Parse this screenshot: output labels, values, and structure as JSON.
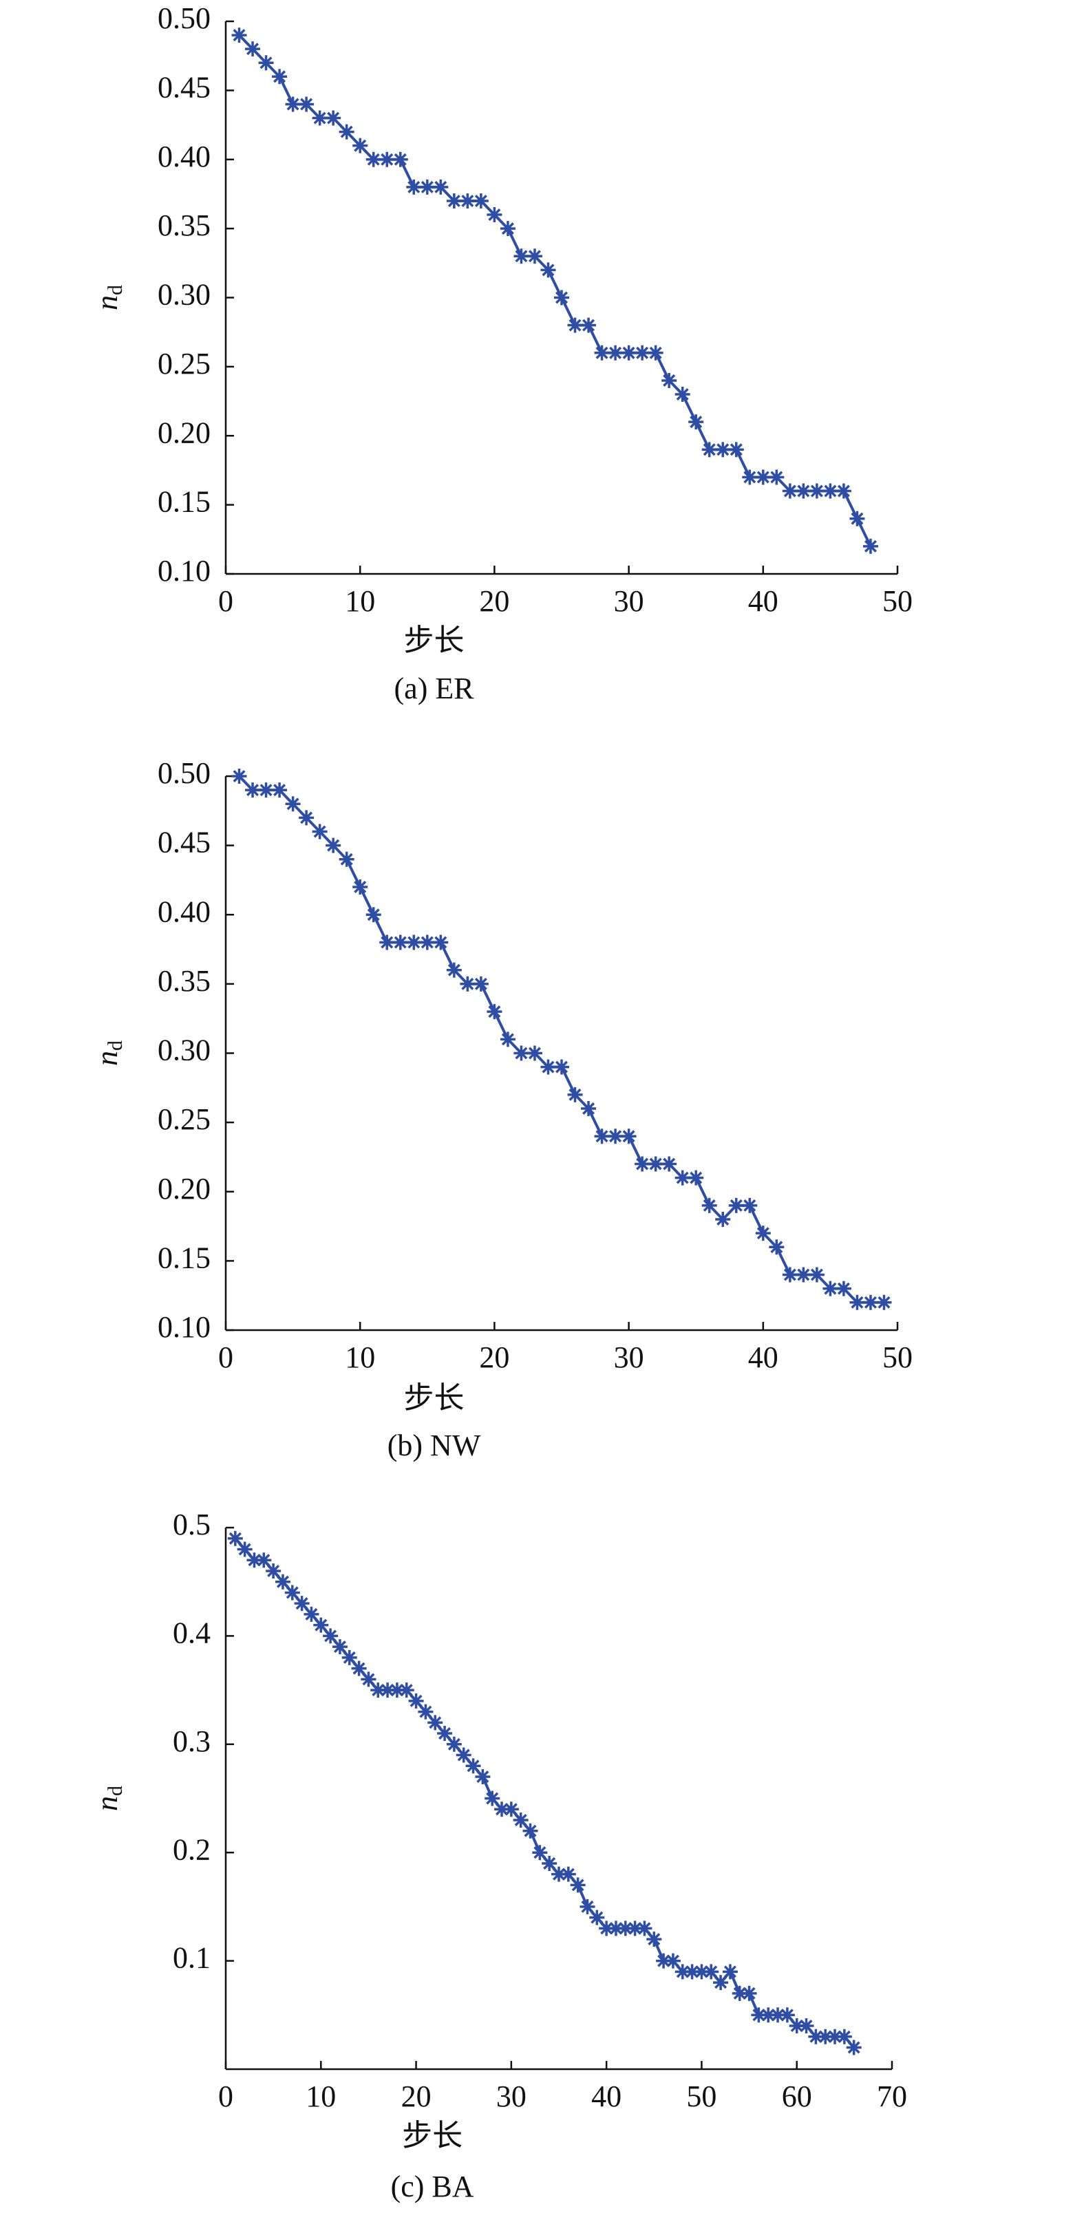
{
  "chart_data": [
    {
      "type": "line",
      "caption": "(a) ER",
      "xlabel": "步长",
      "ylabel": [
        "n",
        "d"
      ],
      "color": "#2f4ea3",
      "x": [
        1,
        2,
        3,
        4,
        5,
        6,
        7,
        8,
        9,
        10,
        11,
        12,
        13,
        14,
        15,
        16,
        17,
        18,
        19,
        20,
        21,
        22,
        23,
        24,
        25,
        26,
        27,
        28,
        29,
        30,
        31,
        32,
        33,
        34,
        35,
        36,
        37,
        38,
        39,
        40,
        41,
        42,
        43,
        44,
        45,
        46,
        47,
        48
      ],
      "values": [
        0.49,
        0.48,
        0.47,
        0.46,
        0.44,
        0.44,
        0.43,
        0.43,
        0.42,
        0.41,
        0.4,
        0.4,
        0.4,
        0.38,
        0.38,
        0.38,
        0.37,
        0.37,
        0.37,
        0.36,
        0.35,
        0.33,
        0.33,
        0.32,
        0.3,
        0.28,
        0.28,
        0.26,
        0.26,
        0.26,
        0.26,
        0.26,
        0.24,
        0.23,
        0.21,
        0.19,
        0.19,
        0.19,
        0.17,
        0.17,
        0.17,
        0.16,
        0.16,
        0.16,
        0.16,
        0.16,
        0.14,
        0.12
      ],
      "xlim": [
        0,
        50
      ],
      "xticks": [
        0,
        10,
        20,
        30,
        40,
        50
      ],
      "ylim": [
        0.1,
        0.5
      ],
      "yticks": [
        {
          "value": 0.1,
          "label": "0.10"
        },
        0.15,
        {
          "value": 0.2,
          "label": "0.20"
        },
        0.25,
        {
          "value": 0.3,
          "label": "0.30"
        },
        0.35,
        {
          "value": 0.4,
          "label": "0.40"
        },
        0.45,
        {
          "value": 0.5,
          "label": "0.50"
        }
      ]
    },
    {
      "type": "line",
      "caption": "(b) NW",
      "xlabel": "步长",
      "ylabel": [
        "n",
        "d"
      ],
      "color": "#2f4ea3",
      "x": [
        1,
        2,
        3,
        4,
        5,
        6,
        7,
        8,
        9,
        10,
        11,
        12,
        13,
        14,
        15,
        16,
        17,
        18,
        19,
        20,
        21,
        22,
        23,
        24,
        25,
        26,
        27,
        28,
        29,
        30,
        31,
        32,
        33,
        34,
        35,
        36,
        37,
        38,
        39,
        40,
        41,
        42,
        43,
        44,
        45,
        46,
        47,
        48,
        49
      ],
      "values": [
        0.5,
        0.49,
        0.49,
        0.49,
        0.48,
        0.47,
        0.46,
        0.45,
        0.44,
        0.42,
        0.4,
        0.38,
        0.38,
        0.38,
        0.38,
        0.38,
        0.36,
        0.35,
        0.35,
        0.33,
        0.31,
        0.3,
        0.3,
        0.29,
        0.29,
        0.27,
        0.26,
        0.24,
        0.24,
        0.24,
        0.22,
        0.22,
        0.22,
        0.21,
        0.21,
        0.19,
        0.18,
        0.19,
        0.19,
        0.17,
        0.16,
        0.14,
        0.14,
        0.14,
        0.13,
        0.13,
        0.12,
        0.12,
        0.12
      ],
      "xlim": [
        0,
        50
      ],
      "xticks": [
        0,
        10,
        20,
        30,
        40,
        50
      ],
      "ylim": [
        0.1,
        0.5
      ],
      "yticks": [
        {
          "value": 0.1,
          "label": "0.10"
        },
        0.15,
        {
          "value": 0.2,
          "label": "0.20"
        },
        0.25,
        {
          "value": 0.3,
          "label": "0.30"
        },
        0.35,
        {
          "value": 0.4,
          "label": "0.40"
        },
        0.45,
        {
          "value": 0.5,
          "label": "0.50"
        }
      ]
    },
    {
      "type": "line",
      "caption": "(c) BA",
      "xlabel": "步长",
      "ylabel": [
        "n",
        "d"
      ],
      "color": "#2f4ea3",
      "x": [
        1,
        2,
        3,
        4,
        5,
        6,
        7,
        8,
        9,
        10,
        11,
        12,
        13,
        14,
        15,
        16,
        17,
        18,
        19,
        20,
        21,
        22,
        23,
        24,
        25,
        26,
        27,
        28,
        29,
        30,
        31,
        32,
        33,
        34,
        35,
        36,
        37,
        38,
        39,
        40,
        41,
        42,
        43,
        44,
        45,
        46,
        47,
        48,
        49,
        50,
        51,
        52,
        53,
        54,
        55,
        56,
        57,
        58,
        59,
        60,
        61,
        62,
        63,
        64,
        65,
        66
      ],
      "values": [
        0.49,
        0.48,
        0.47,
        0.47,
        0.46,
        0.45,
        0.44,
        0.43,
        0.42,
        0.41,
        0.4,
        0.39,
        0.38,
        0.37,
        0.36,
        0.35,
        0.35,
        0.35,
        0.35,
        0.34,
        0.33,
        0.32,
        0.31,
        0.3,
        0.29,
        0.28,
        0.27,
        0.25,
        0.24,
        0.24,
        0.23,
        0.22,
        0.2,
        0.19,
        0.18,
        0.18,
        0.17,
        0.15,
        0.14,
        0.13,
        0.13,
        0.13,
        0.13,
        0.13,
        0.12,
        0.1,
        0.1,
        0.09,
        0.09,
        0.09,
        0.09,
        0.08,
        0.09,
        0.07,
        0.07,
        0.05,
        0.05,
        0.05,
        0.05,
        0.04,
        0.04,
        0.03,
        0.03,
        0.03,
        0.03,
        0.02
      ],
      "xlim": [
        0,
        70
      ],
      "xticks": [
        0,
        10,
        20,
        30,
        40,
        50,
        60,
        70
      ],
      "ylim": [
        0,
        0.5
      ],
      "yticks": [
        0.1,
        0.2,
        0.3,
        0.4,
        0.5
      ]
    }
  ]
}
